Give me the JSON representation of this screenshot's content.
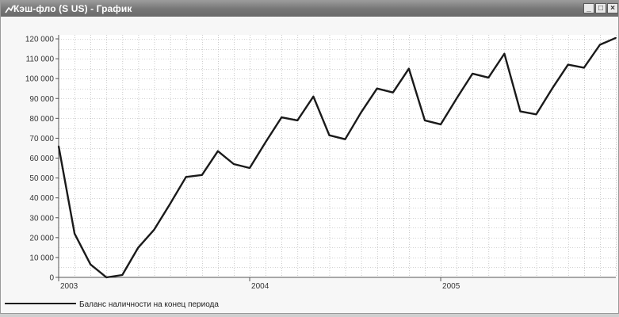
{
  "window": {
    "title": "Кэш-фло (S US) - График",
    "buttons": {
      "minimize": "_",
      "maximize": "□",
      "close": "×"
    }
  },
  "chart_data": {
    "type": "line",
    "title": "",
    "xlabel": "",
    "ylabel": "",
    "grid": true,
    "legend_position": "bottom-left",
    "x_labels": [
      "2003",
      "2004",
      "2005"
    ],
    "x": [
      "2003-01",
      "2003-02",
      "2003-03",
      "2003-04",
      "2003-05",
      "2003-06",
      "2003-07",
      "2003-08",
      "2003-09",
      "2003-10",
      "2003-11",
      "2003-12",
      "2004-01",
      "2004-02",
      "2004-03",
      "2004-04",
      "2004-05",
      "2004-06",
      "2004-07",
      "2004-08",
      "2004-09",
      "2004-10",
      "2004-11",
      "2004-12",
      "2005-01",
      "2005-02",
      "2005-03",
      "2005-04",
      "2005-05",
      "2005-06",
      "2005-07",
      "2005-08",
      "2005-09",
      "2005-10",
      "2005-11",
      "2005-12"
    ],
    "ylim": [
      0,
      122000
    ],
    "yticks": [
      0,
      10000,
      20000,
      30000,
      40000,
      50000,
      60000,
      70000,
      80000,
      90000,
      100000,
      110000,
      120000
    ],
    "ytick_labels": [
      "0",
      "10 000",
      "20 000",
      "30 000",
      "40 000",
      "50 000",
      "60 000",
      "70 000",
      "80 000",
      "90 000",
      "100 000",
      "110 000",
      "120 000"
    ],
    "series": [
      {
        "name": "Баланс наличности на конец периода",
        "color": "#1a1a1a",
        "values": [
          66000,
          22000,
          6500,
          0,
          1200,
          15000,
          24000,
          37000,
          50500,
          51500,
          63500,
          57000,
          55000,
          68000,
          80500,
          79000,
          91000,
          71500,
          69500,
          83000,
          95000,
          93000,
          105000,
          79000,
          77000,
          90000,
          102500,
          100500,
          112500,
          83500,
          82000,
          95000,
          107000,
          105500,
          117000,
          120500
        ]
      }
    ]
  }
}
